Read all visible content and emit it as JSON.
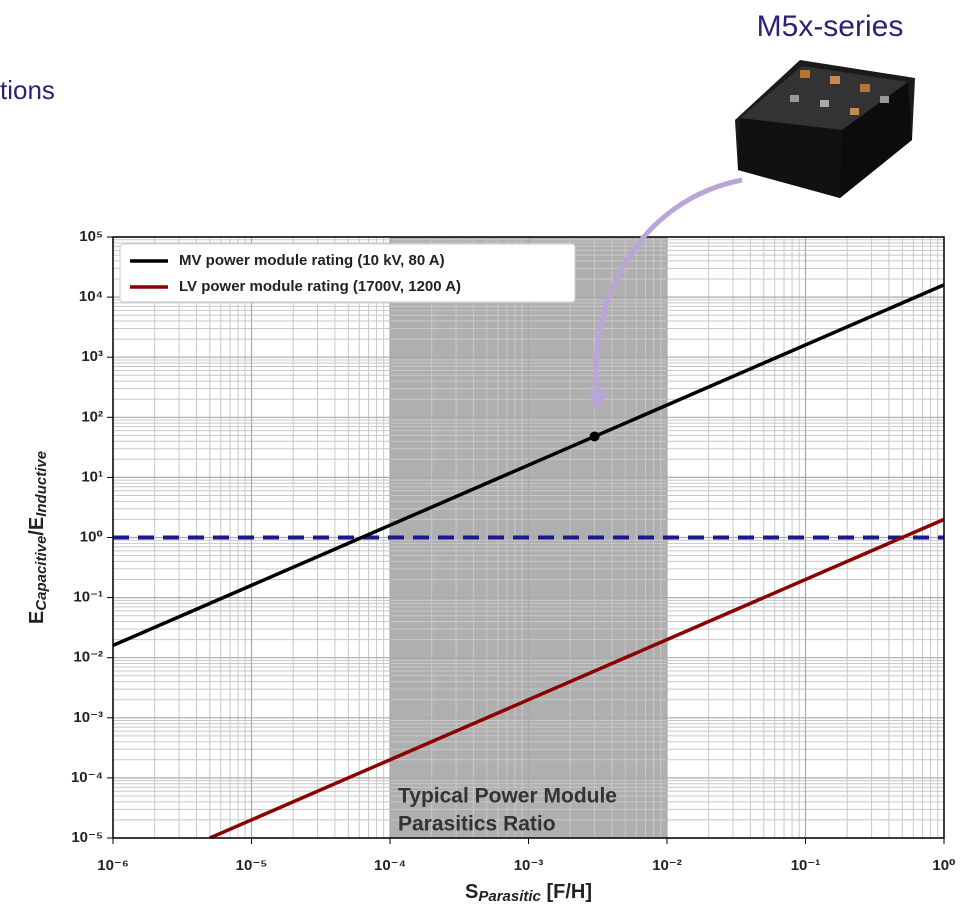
{
  "page": {
    "heading_fragment": "tions",
    "product_label": "M5x-series"
  },
  "chart_data": {
    "type": "line",
    "xlabel": [
      "S",
      "Parasitic",
      " [F/H]"
    ],
    "ylabel": [
      "E",
      "Capacitive",
      "/E",
      "Inductive"
    ],
    "xscale": "log",
    "yscale": "log",
    "grid": true,
    "xlim": [
      1e-06,
      1
    ],
    "ylim": [
      1e-05,
      100000
    ],
    "xticks": [
      {
        "value": 1e-06,
        "label": "10⁻⁶"
      },
      {
        "value": 1e-05,
        "label": "10⁻⁵"
      },
      {
        "value": 0.0001,
        "label": "10⁻⁴"
      },
      {
        "value": 0.001,
        "label": "10⁻³"
      },
      {
        "value": 0.01,
        "label": "10⁻²"
      },
      {
        "value": 0.1,
        "label": "10⁻¹"
      },
      {
        "value": 1,
        "label": "10⁰"
      }
    ],
    "yticks": [
      {
        "value": 1e-05,
        "label": "10⁻⁵"
      },
      {
        "value": 0.0001,
        "label": "10⁻⁴"
      },
      {
        "value": 0.001,
        "label": "10⁻³"
      },
      {
        "value": 0.01,
        "label": "10⁻²"
      },
      {
        "value": 0.1,
        "label": "10⁻¹"
      },
      {
        "value": 1,
        "label": "10⁰"
      },
      {
        "value": 10,
        "label": "10¹"
      },
      {
        "value": 100,
        "label": "10²"
      },
      {
        "value": 1000,
        "label": "10³"
      },
      {
        "value": 10000,
        "label": "10⁴"
      },
      {
        "value": 100000,
        "label": "10⁵"
      }
    ],
    "series": [
      {
        "name": "MV power module rating (10 kV, 80 A)",
        "color": "#000000",
        "x": [
          1e-06,
          1
        ],
        "values": [
          0.016,
          16000
        ]
      },
      {
        "name": "LV power module rating (1700V, 1200 A)",
        "color": "#8b0000",
        "x": [
          5e-06,
          1
        ],
        "values": [
          1e-05,
          2
        ]
      }
    ],
    "hline": {
      "value": 1,
      "color": "#1a1a8c"
    },
    "highlight_point": {
      "x": 0.003,
      "y": 48
    },
    "shaded_xrange": [
      0.0001,
      0.01
    ],
    "annotation": [
      "Typical Power Module",
      "Parasitics Ratio"
    ],
    "legend": "upper left"
  }
}
